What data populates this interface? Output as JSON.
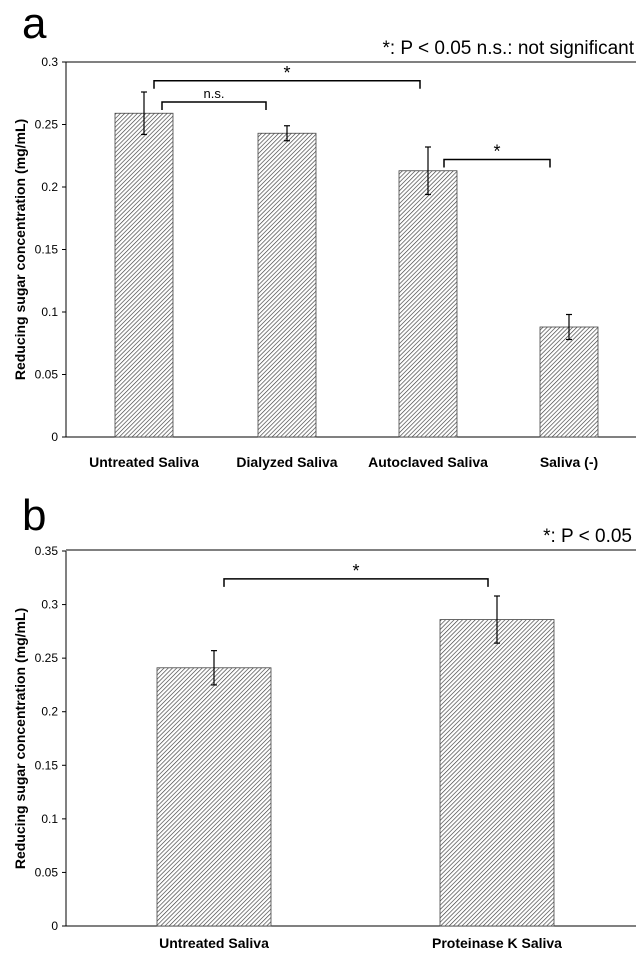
{
  "chart_data": [
    {
      "panel": "a",
      "type": "bar",
      "legend_text": "*: P < 0.05  n.s.: not significant",
      "ylabel": "Reducing sugar concentration (mg/mL)",
      "ylim": [
        0,
        0.3
      ],
      "ytick_step": 0.05,
      "yticks": [
        "0",
        "0.05",
        "0.1",
        "0.15",
        "0.2",
        "0.25",
        "0.3"
      ],
      "categories": [
        "Untreated Saliva",
        "Dialyzed Saliva",
        "Autoclaved Saliva",
        "Saliva (-)"
      ],
      "values": [
        0.259,
        0.243,
        0.213,
        0.088
      ],
      "errors": [
        0.017,
        0.006,
        0.019,
        0.01
      ],
      "comparisons": [
        {
          "from": 0,
          "to": 1,
          "label": "n.s.",
          "y": 0.268
        },
        {
          "from": 0,
          "to": 2,
          "label": "*",
          "y": 0.285
        },
        {
          "from": 2,
          "to": 3,
          "label": "*",
          "y": 0.222
        }
      ]
    },
    {
      "panel": "b",
      "type": "bar",
      "legend_text": "*: P < 0.05",
      "ylabel": "Reducing sugar concentration (mg/mL)",
      "ylim": [
        0,
        0.35
      ],
      "ytick_step": 0.05,
      "yticks": [
        "0",
        "0.05",
        "0.1",
        "0.15",
        "0.2",
        "0.25",
        "0.3",
        "0.35"
      ],
      "categories": [
        "Untreated Saliva",
        "Proteinase K Saliva"
      ],
      "values": [
        0.241,
        0.286
      ],
      "errors": [
        0.016,
        0.022
      ],
      "comparisons": [
        {
          "from": 0,
          "to": 1,
          "label": "*",
          "y": 0.324
        }
      ]
    }
  ]
}
